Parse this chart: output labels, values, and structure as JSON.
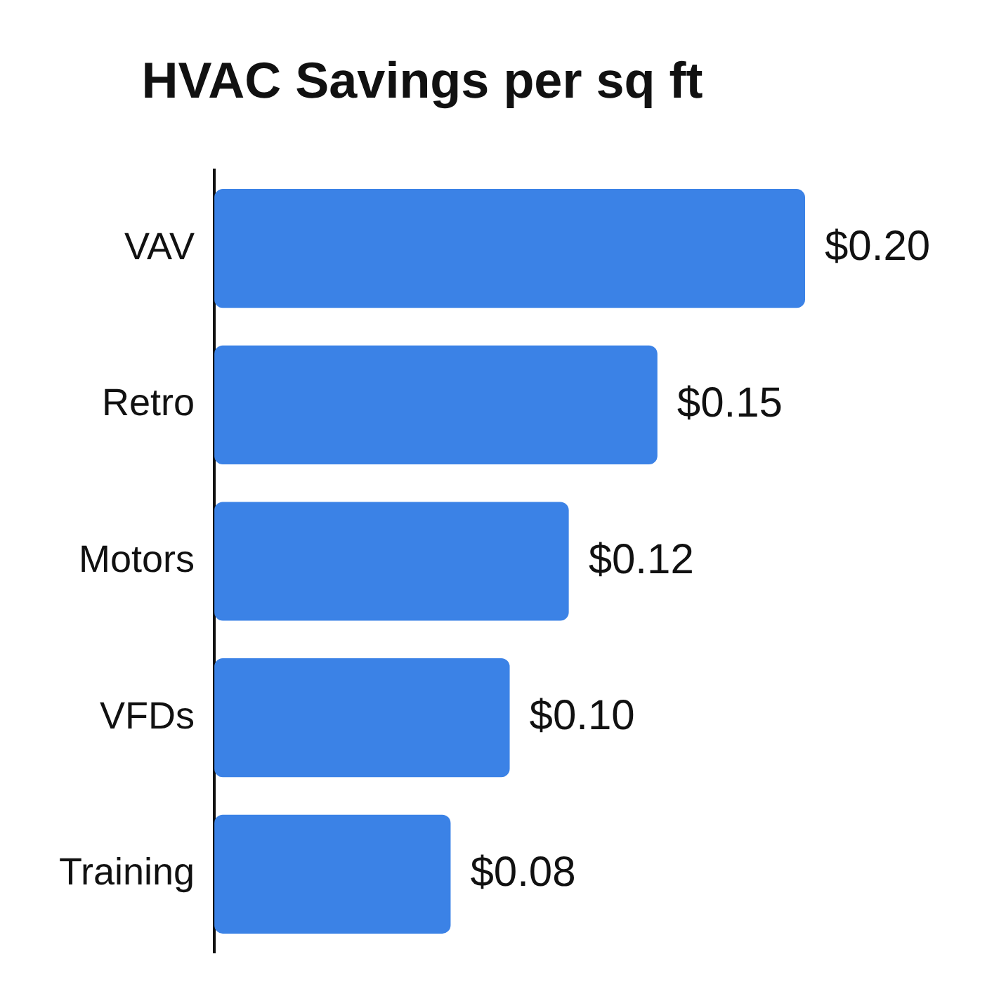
{
  "chart_data": {
    "type": "bar",
    "orientation": "horizontal",
    "title": "HVAC Savings per sq ft",
    "categories": [
      "VAV",
      "Retro",
      "Motors",
      "VFDs",
      "Training"
    ],
    "values": [
      0.2,
      0.15,
      0.12,
      0.1,
      0.08
    ],
    "value_labels": [
      "$0.20",
      "$0.15",
      "$0.12",
      "$0.10",
      "$0.08"
    ],
    "color": "#3b82e6"
  }
}
